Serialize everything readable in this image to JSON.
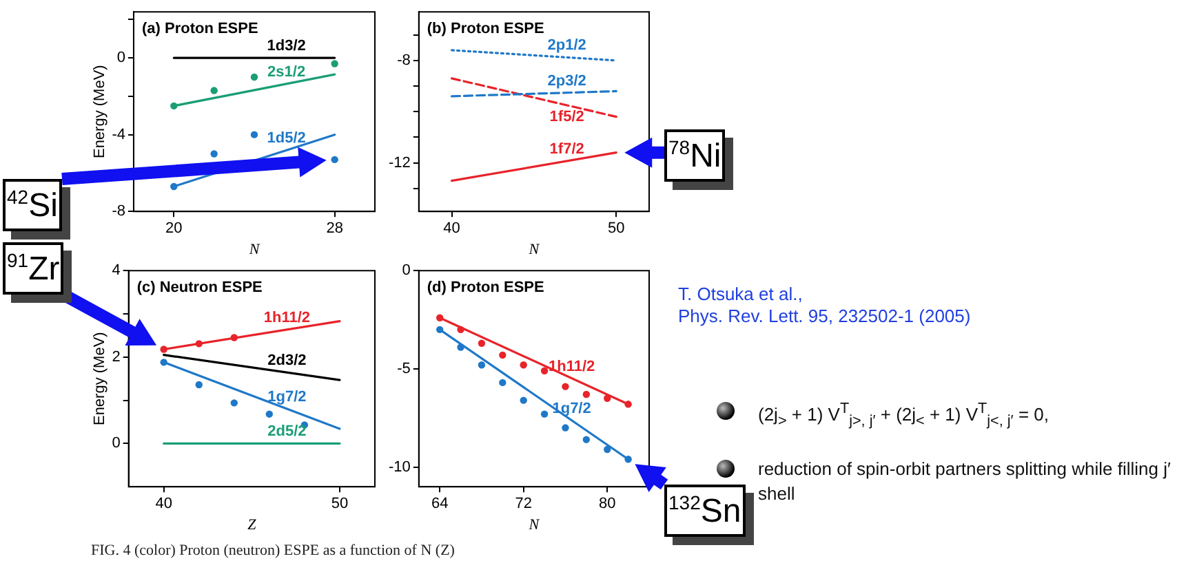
{
  "chart_data": [
    {
      "type": "line",
      "title": "(a) Proton ESPE",
      "xlabel": "N",
      "ylabel": "Energy (MeV)",
      "xlim": [
        18,
        30
      ],
      "xticks": [
        20,
        28
      ],
      "ylim": [
        -8,
        2.4
      ],
      "yticks": [
        -8,
        {
          "value": -6,
          "label": null
        },
        -4,
        {
          "value": -2,
          "label": null
        },
        0,
        {
          "value": 2,
          "label": null
        }
      ],
      "series": [
        {
          "name": "1d3/2",
          "type": "line",
          "color": "#000000",
          "marker": "none",
          "x": [
            20,
            28
          ],
          "values": [
            0,
            0
          ]
        },
        {
          "name": "2s1/2",
          "type": "line",
          "color": "#1a9e76",
          "marker": "none",
          "x": [
            20,
            28
          ],
          "values": [
            -2.5,
            -0.86
          ]
        },
        {
          "type": "scatter",
          "color": "#1a9e76",
          "marker": "circle",
          "x": [
            20,
            22,
            24,
            28
          ],
          "values": [
            -2.5,
            -1.7,
            -1.0,
            -0.3
          ]
        },
        {
          "name": "1d5/2",
          "type": "line",
          "color": "#1f78c8",
          "marker": "none",
          "x": [
            20,
            28
          ],
          "values": [
            -6.7,
            -4.0
          ]
        },
        {
          "type": "scatter",
          "color": "#1f78c8",
          "marker": "circle",
          "x": [
            20,
            22,
            24,
            28
          ],
          "values": [
            -6.7,
            -5.0,
            -4.0,
            -5.3
          ]
        }
      ],
      "annotations": [
        "$^{42}$Si"
      ]
    },
    {
      "type": "line",
      "title": "(b) Proton ESPE",
      "xlabel": "N",
      "xlim": [
        38,
        52
      ],
      "xticks": [
        40,
        50
      ],
      "ylim": [
        -13.9,
        -6.1
      ],
      "yticks": [
        {
          "value": -13,
          "label": null
        },
        -12,
        {
          "value": -11,
          "label": null
        },
        {
          "value": -10,
          "label": null
        },
        {
          "value": -9,
          "label": null
        },
        -8,
        {
          "value": -7,
          "label": null
        }
      ],
      "series": [
        {
          "name": "2p1/2",
          "type": "line",
          "color": "#1f78c8",
          "marker": "none",
          "line_style": "dotted",
          "x": [
            40,
            50
          ],
          "values": [
            -7.6,
            -8.0
          ]
        },
        {
          "name": "2p3/2",
          "type": "line",
          "color": "#1f78c8",
          "marker": "none",
          "line_style": "dashed",
          "x": [
            40,
            50
          ],
          "values": [
            -9.4,
            -9.2
          ]
        },
        {
          "name": "1f5/2",
          "type": "line",
          "color": "#e8232a",
          "marker": "none",
          "line_style": "dashed",
          "x": [
            40,
            50
          ],
          "values": [
            -8.7,
            -10.2
          ]
        },
        {
          "name": "1f7/2",
          "type": "line",
          "color": "#e8232a",
          "marker": "none",
          "x": [
            40,
            50
          ],
          "values": [
            -12.7,
            -11.6
          ]
        }
      ],
      "annotations": [
        {
          "text": "$^{78}$Ni",
          "x": 50,
          "y": -11.6
        }
      ]
    },
    {
      "type": "line",
      "title": "(c) Neutron ESPE",
      "xlabel": "Z",
      "ylabel": "Energy (MeV)",
      "xlim": [
        38,
        52
      ],
      "xticks": [
        40,
        50
      ],
      "ylim": [
        -1,
        4
      ],
      "yticks": [
        0,
        {
          "value": 1,
          "label": null
        },
        2,
        {
          "value": 3,
          "label": null
        },
        4
      ],
      "series": [
        {
          "name": "1h11/2",
          "type": "line",
          "color": "#e8232a",
          "marker": "none",
          "x": [
            40,
            50
          ],
          "values": [
            2.18,
            2.83
          ]
        },
        {
          "type": "scatter",
          "color": "#e8232a",
          "marker": "circle",
          "x": [
            40,
            42,
            44
          ],
          "values": [
            2.18,
            2.31,
            2.45
          ]
        },
        {
          "name": "2d3/2",
          "type": "line",
          "color": "#000000",
          "marker": "none",
          "x": [
            40,
            50
          ],
          "values": [
            2.05,
            1.47
          ]
        },
        {
          "name": "1g7/2",
          "type": "line",
          "color": "#1f78c8",
          "marker": "none",
          "x": [
            40,
            50
          ],
          "values": [
            1.88,
            0.34
          ]
        },
        {
          "type": "scatter",
          "color": "#1f78c8",
          "marker": "circle",
          "x": [
            40,
            42,
            44,
            46,
            48
          ],
          "values": [
            1.88,
            1.36,
            0.94,
            0.68,
            0.43
          ]
        },
        {
          "name": "2d5/2",
          "type": "line",
          "color": "#1a9e76",
          "marker": "none",
          "x": [
            40,
            50
          ],
          "values": [
            0,
            0
          ]
        }
      ],
      "annotations": [
        "$^{91}$Zr"
      ]
    },
    {
      "type": "line",
      "title": "(d) Proton ESPE",
      "xlabel": "N",
      "xlim": [
        62,
        84
      ],
      "xticks": [
        64,
        72,
        80
      ],
      "ylim": [
        -11,
        0
      ],
      "yticks": [
        -10,
        -5,
        0
      ],
      "series": [
        {
          "name": "1h11/2",
          "type": "line",
          "color": "#e8232a",
          "marker": "none",
          "x": [
            64,
            82
          ],
          "values": [
            -2.4,
            -6.8
          ]
        },
        {
          "type": "scatter",
          "color": "#e8232a",
          "marker": "circle",
          "x": [
            64,
            66,
            68,
            70,
            72,
            74,
            76,
            78,
            80,
            82
          ],
          "values": [
            -2.4,
            -3.0,
            -3.7,
            -4.3,
            -4.8,
            -5.1,
            -5.9,
            -6.3,
            -6.5,
            -6.8
          ]
        },
        {
          "name": "1g7/2",
          "type": "line",
          "color": "#1f78c8",
          "marker": "none",
          "x": [
            64,
            82
          ],
          "values": [
            -3.0,
            -9.6
          ]
        },
        {
          "type": "scatter",
          "color": "#1f78c8",
          "marker": "circle",
          "x": [
            64,
            66,
            68,
            70,
            72,
            74,
            76,
            78,
            80,
            82
          ],
          "values": [
            -3.0,
            -3.9,
            -4.8,
            -5.7,
            -6.6,
            -7.3,
            -8.0,
            -8.6,
            -9.1,
            -9.6
          ]
        }
      ],
      "annotations": [
        {
          "text": "$^{132}$Sn",
          "x": 82,
          "y": -9.6
        }
      ]
    },
    {
      "type": "other",
      "annotations": [
        "T. Otsuka et al.,",
        "Phys. Rev. Lett. 95, 232502-1 (2005)",
        "(2j$_{>}$ + 1) V$^{T}$$_{j>, j′}$ + (2j$_{<}$ + 1) V$^{T}$$_{j<, j′}$ = 0,",
        "reduction of spin-orbit partners splitting while filling j′ shell",
        "FIG. 4 (color)  Proton (neutron) ESPE as a function of N (Z)"
      ]
    }
  ]
}
